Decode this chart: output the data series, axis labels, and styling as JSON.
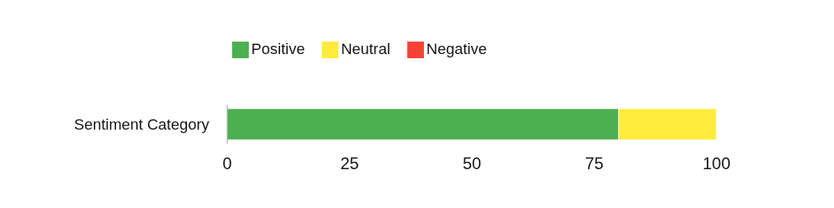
{
  "chart_data": {
    "type": "bar",
    "orientation": "horizontal",
    "stacked": true,
    "categories": [
      "Sentiment Category"
    ],
    "series": [
      {
        "name": "Positive",
        "color": "#4caf50",
        "values": [
          80
        ]
      },
      {
        "name": "Neutral",
        "color": "#ffeb3b",
        "values": [
          20
        ]
      },
      {
        "name": "Negative",
        "color": "#f44336",
        "values": [
          0
        ]
      }
    ],
    "xlim": [
      0,
      100
    ],
    "xticks": [
      0,
      25,
      50,
      75,
      100
    ],
    "grid": false,
    "legend": "top"
  }
}
